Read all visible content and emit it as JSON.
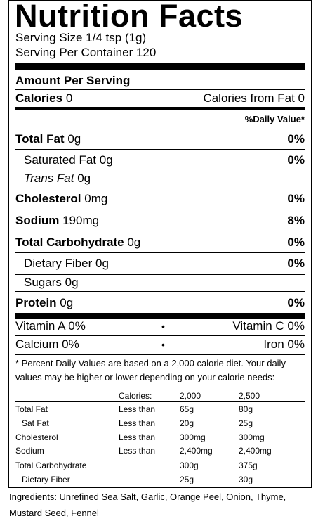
{
  "title": "Nutrition Facts",
  "serving_size": "Serving Size 1/4 tsp (1g)",
  "servings_per_container": "Serving Per Container 120",
  "amount_per_serving": "Amount Per Serving",
  "calories": {
    "label": "Calories",
    "value": "0",
    "from_fat": "Calories from Fat 0"
  },
  "daily_value_header": "%Daily Value*",
  "nutrients": [
    {
      "name": "Total Fat",
      "amount": "0g",
      "dv": "0%"
    },
    {
      "name": "Saturated Fat",
      "amount": "0g",
      "dv": "0%"
    },
    {
      "name": "Trans Fat",
      "amount": "0g",
      "dv": ""
    },
    {
      "name": "Cholesterol",
      "amount": "0mg",
      "dv": "0%"
    },
    {
      "name": "Sodium",
      "amount": "190mg",
      "dv": "8%"
    },
    {
      "name": "Total Carbohydrate",
      "amount": "0g",
      "dv": "0%"
    },
    {
      "name": "Dietary Fiber",
      "amount": "0g",
      "dv": "0%"
    },
    {
      "name": "Sugars",
      "amount": "0g",
      "dv": ""
    },
    {
      "name": "Protein",
      "amount": "0g",
      "dv": "0%"
    }
  ],
  "vitamins": {
    "vitamin_a": "Vitamin A 0%",
    "vitamin_c": "Vitamin C 0%",
    "calcium": "Calcium 0%",
    "iron": "Iron 0%",
    "separator": "•"
  },
  "footnote": {
    "line1": "* Percent Daily Values are based on a 2,000 calorie diet. Your daily",
    "line2": "values may be higher or lower depending on your calorie needs:"
  },
  "dv_table": {
    "header": [
      "",
      "Calories:",
      "2,000",
      "2,500"
    ],
    "rows": [
      [
        "Total Fat",
        "Less than",
        "65g",
        "80g"
      ],
      [
        "Sat Fat",
        "Less than",
        "20g",
        "25g"
      ],
      [
        "Cholesterol",
        "Less than",
        "300mg",
        "300mg"
      ],
      [
        "Sodium",
        "Less than",
        "2,400mg",
        "2,400mg"
      ],
      [
        "Total Carbohydrate",
        "",
        "300g",
        "375g"
      ],
      [
        "Dietary Fiber",
        "",
        "25g",
        "30g"
      ]
    ]
  },
  "ingredients": {
    "line1": "Ingredients: Unrefined Sea Salt, Garlic, Orange Peel, Onion, Thyme,",
    "line2": "Mustard Seed, Fennel"
  }
}
